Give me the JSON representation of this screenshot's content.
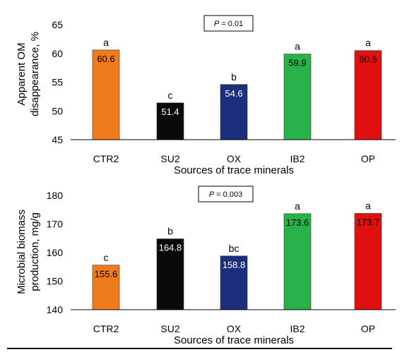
{
  "chart_data": [
    {
      "type": "bar",
      "ylabel_line1": "Apparent OM",
      "ylabel_line2": "disappearance, %",
      "xlabel": "Sources of trace minerals",
      "annotation": "P = 0.01",
      "annotation_p": "P",
      "annotation_rest": " = 0.01",
      "ylim": [
        45,
        65
      ],
      "yticks": [
        45,
        50,
        55,
        60,
        65
      ],
      "ytick_labels": [
        "45",
        "50",
        "55",
        "60",
        "65"
      ],
      "categories": [
        "CTR2",
        "SU2",
        "OX",
        "IB2",
        "OP"
      ],
      "values": [
        60.6,
        51.4,
        54.6,
        59.9,
        60.5
      ],
      "value_labels": [
        "60.6",
        "51.4",
        "54.6",
        "59.9",
        "60.5"
      ],
      "letters": [
        "a",
        "c",
        "b",
        "a",
        "a"
      ],
      "colors": [
        "#f07b1a",
        "#0a0a0a",
        "#1c2f7e",
        "#27b34a",
        "#e01010"
      ],
      "value_label_colors": [
        "#000000",
        "#ffffff",
        "#ffffff",
        "#000000",
        "#000000"
      ],
      "grid": false
    },
    {
      "type": "bar",
      "ylabel_line1": "Microbial biomass",
      "ylabel_line2": "production, mg/g",
      "xlabel": "Sources of trace minerals",
      "annotation": "P = 0.003",
      "annotation_p": "P",
      "annotation_rest": " = 0.003",
      "ylim": [
        140,
        180
      ],
      "yticks": [
        140,
        150,
        160,
        170,
        180
      ],
      "ytick_labels": [
        "140",
        "150",
        "160",
        "170",
        "180"
      ],
      "categories": [
        "CTR2",
        "SU2",
        "OX",
        "IB2",
        "OP"
      ],
      "values": [
        155.6,
        164.8,
        158.8,
        173.6,
        173.7
      ],
      "value_labels": [
        "155.6",
        "164.8",
        "158.8",
        "173.6",
        "173.7"
      ],
      "letters": [
        "c",
        "b",
        "bc",
        "a",
        "a"
      ],
      "colors": [
        "#f07b1a",
        "#0a0a0a",
        "#1c2f7e",
        "#27b34a",
        "#e01010"
      ],
      "value_label_colors": [
        "#000000",
        "#ffffff",
        "#ffffff",
        "#000000",
        "#000000"
      ],
      "grid": false
    }
  ]
}
